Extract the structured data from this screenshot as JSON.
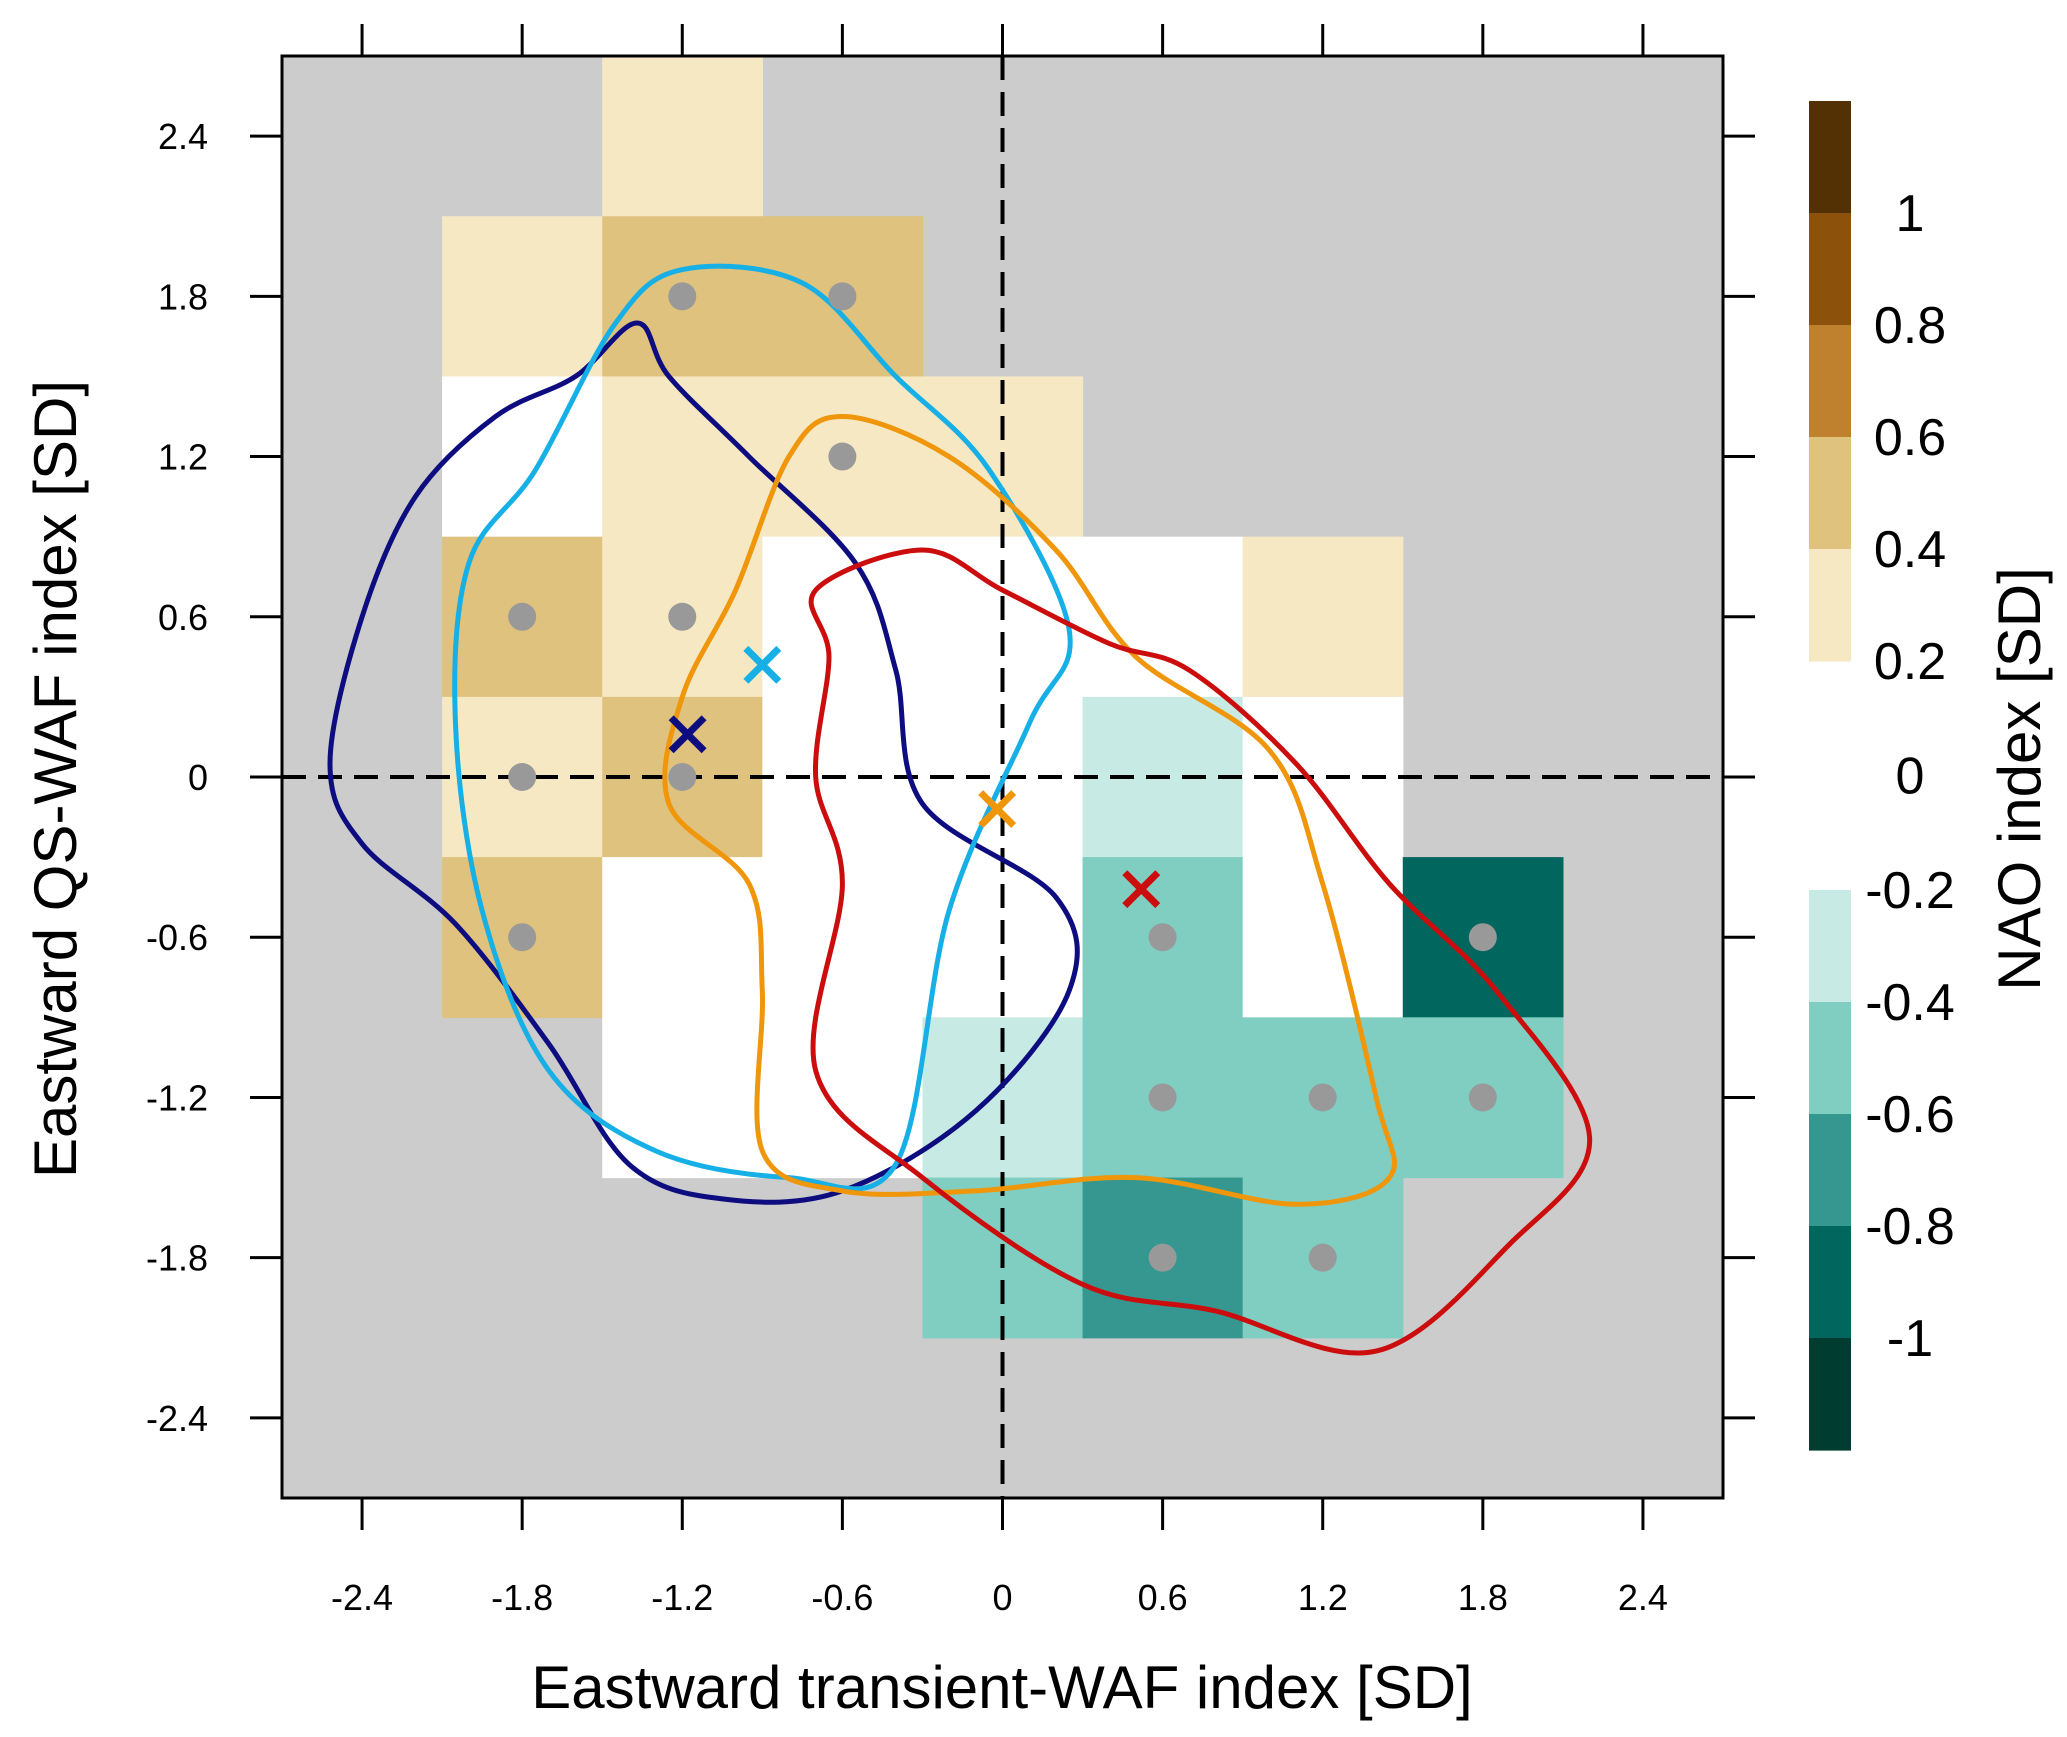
{
  "chart_data": {
    "type": "heatmap",
    "xlabel": "Eastward transient-WAF index [SD]",
    "ylabel": "Eastward QS-WAF index [SD]",
    "xlim": [
      -2.7,
      2.7
    ],
    "ylim": [
      -2.7,
      2.7
    ],
    "xticks": [
      -2.4,
      -1.8,
      -1.2,
      -0.6,
      0,
      0.6,
      1.2,
      1.8,
      2.4
    ],
    "yticks": [
      -2.4,
      -1.8,
      -1.2,
      -0.6,
      0,
      0.6,
      1.2,
      1.8,
      2.4
    ],
    "xtick_labels": [
      "-2.4",
      "-1.8",
      "-1.2",
      "-0.6",
      "0",
      "0.6",
      "1.2",
      "1.8",
      "2.4"
    ],
    "ytick_labels": [
      "-2.4",
      "-1.8",
      "-1.2",
      "-0.6",
      "0",
      "0.6",
      "1.2",
      "1.8",
      "2.4"
    ],
    "cell_size": 0.6,
    "background_color": "#cccccc",
    "colorbar": {
      "label": "NAO index [SD]",
      "levels": [
        1.2,
        1.0,
        0.8,
        0.6,
        0.4,
        0.2,
        0,
        -0.2,
        -0.4,
        -0.6,
        -0.8,
        -1.0,
        -1.2
      ],
      "level_labels": [
        "1",
        "0.8",
        "0.6",
        "0.4",
        "0.2",
        "0",
        "-0.2",
        "-0.4",
        "-0.6",
        "-0.8",
        "-1"
      ],
      "label_values": [
        1.0,
        0.8,
        0.6,
        0.4,
        0.2,
        0,
        -0.2,
        -0.4,
        -0.6,
        -0.8,
        -1.0
      ],
      "colors_positive": [
        "#543005",
        "#8c510a",
        "#bf812d",
        "#dfc27d",
        "#f6e8c3"
      ],
      "colors_negative": [
        "#c7eae5",
        "#80cdc1",
        "#35978f",
        "#01665e",
        "#003c30"
      ],
      "colors": [
        "#543005",
        "#8c510a",
        "#bf812d",
        "#dfc27d",
        "#f6e8c3",
        "#ffffff",
        "#ffffff",
        "#c7eae5",
        "#80cdc1",
        "#35978f",
        "#01665e",
        "#003c30"
      ]
    },
    "cells": [
      {
        "x": -1.2,
        "y": 2.4,
        "nao": 0.3
      },
      {
        "x": -1.8,
        "y": 1.8,
        "nao": 0.3
      },
      {
        "x": -1.2,
        "y": 1.8,
        "nao": 0.5,
        "significant": true
      },
      {
        "x": -0.6,
        "y": 1.8,
        "nao": 0.5,
        "significant": true
      },
      {
        "x": -1.8,
        "y": 1.2,
        "nao": 0.1
      },
      {
        "x": -1.2,
        "y": 1.2,
        "nao": 0.3
      },
      {
        "x": -0.6,
        "y": 1.2,
        "nao": 0.3,
        "significant": true
      },
      {
        "x": 0.0,
        "y": 1.2,
        "nao": 0.3
      },
      {
        "x": -1.8,
        "y": 0.6,
        "nao": 0.5,
        "significant": true
      },
      {
        "x": -1.2,
        "y": 0.6,
        "nao": 0.3,
        "significant": true
      },
      {
        "x": -0.6,
        "y": 0.6,
        "nao": 0.1
      },
      {
        "x": 0.0,
        "y": 0.6,
        "nao": 0.1
      },
      {
        "x": 0.6,
        "y": 0.6,
        "nao": 0.1
      },
      {
        "x": 1.2,
        "y": 0.6,
        "nao": 0.3
      },
      {
        "x": -1.8,
        "y": 0.0,
        "nao": 0.3,
        "significant": true
      },
      {
        "x": -1.2,
        "y": 0.0,
        "nao": 0.5,
        "significant": true
      },
      {
        "x": -0.6,
        "y": 0.0,
        "nao": 0.1
      },
      {
        "x": 0.0,
        "y": 0.0,
        "nao": 0.1
      },
      {
        "x": 0.6,
        "y": 0.0,
        "nao": -0.3
      },
      {
        "x": 1.2,
        "y": 0.0,
        "nao": 0.1
      },
      {
        "x": -1.8,
        "y": -0.6,
        "nao": 0.5,
        "significant": true
      },
      {
        "x": -1.2,
        "y": -0.6,
        "nao": 0.1
      },
      {
        "x": -0.6,
        "y": -0.6,
        "nao": 0.1
      },
      {
        "x": 0.0,
        "y": -0.6,
        "nao": 0.1
      },
      {
        "x": 0.6,
        "y": -0.6,
        "nao": -0.5,
        "significant": true
      },
      {
        "x": 1.2,
        "y": -0.6,
        "nao": 0.1
      },
      {
        "x": 1.8,
        "y": -0.6,
        "nao": -0.9,
        "significant": true
      },
      {
        "x": -1.2,
        "y": -1.2,
        "nao": 0.1
      },
      {
        "x": -0.6,
        "y": -1.2,
        "nao": 0.1
      },
      {
        "x": 0.0,
        "y": -1.2,
        "nao": -0.3
      },
      {
        "x": 0.6,
        "y": -1.2,
        "nao": -0.5,
        "significant": true
      },
      {
        "x": 1.2,
        "y": -1.2,
        "nao": -0.5,
        "significant": true
      },
      {
        "x": 1.8,
        "y": -1.2,
        "nao": -0.5,
        "significant": true
      },
      {
        "x": 0.0,
        "y": -1.8,
        "nao": -0.5
      },
      {
        "x": 0.6,
        "y": -1.8,
        "nao": -0.7,
        "significant": true
      },
      {
        "x": 1.2,
        "y": -1.8,
        "nao": -0.5,
        "significant": true
      }
    ],
    "reference_lines": [
      {
        "orientation": "vertical",
        "value": 0
      },
      {
        "orientation": "horizontal",
        "value": 0
      }
    ],
    "contours": [
      {
        "color": "#0d0d80",
        "centroid": [
          -1.18,
          0.16
        ],
        "points": [
          [
            -1.37,
            1.7
          ],
          [
            -1.6,
            1.5
          ],
          [
            -1.9,
            1.35
          ],
          [
            -2.2,
            1.05
          ],
          [
            -2.4,
            0.6
          ],
          [
            -2.52,
            0.05
          ],
          [
            -2.4,
            -0.25
          ],
          [
            -2.05,
            -0.55
          ],
          [
            -1.7,
            -1.0
          ],
          [
            -1.4,
            -1.45
          ],
          [
            -1.05,
            -1.58
          ],
          [
            -0.6,
            -1.55
          ],
          [
            -0.1,
            -1.25
          ],
          [
            0.25,
            -0.8
          ],
          [
            0.2,
            -0.45
          ],
          [
            -0.3,
            -0.1
          ],
          [
            -0.4,
            0.4
          ],
          [
            -0.55,
            0.8
          ],
          [
            -0.95,
            1.2
          ],
          [
            -1.25,
            1.5
          ],
          [
            -1.37,
            1.7
          ]
        ]
      },
      {
        "color": "#16b0e6",
        "centroid": [
          -0.9,
          0.42
        ],
        "points": [
          [
            -1.2,
            1.9
          ],
          [
            -0.75,
            1.85
          ],
          [
            -0.4,
            1.5
          ],
          [
            -0.05,
            1.15
          ],
          [
            0.25,
            0.55
          ],
          [
            0.1,
            0.2
          ],
          [
            -0.2,
            -0.5
          ],
          [
            -0.4,
            -1.45
          ],
          [
            -0.8,
            -1.5
          ],
          [
            -1.3,
            -1.4
          ],
          [
            -1.7,
            -1.1
          ],
          [
            -1.95,
            -0.5
          ],
          [
            -2.05,
            0.2
          ],
          [
            -2.0,
            0.8
          ],
          [
            -1.75,
            1.15
          ],
          [
            -1.45,
            1.7
          ],
          [
            -1.2,
            1.9
          ]
        ]
      },
      {
        "color": "#f0960a",
        "centroid": [
          -0.02,
          -0.12
        ],
        "points": [
          [
            -0.6,
            1.35
          ],
          [
            -0.2,
            1.2
          ],
          [
            0.2,
            0.85
          ],
          [
            0.5,
            0.45
          ],
          [
            1.0,
            0.1
          ],
          [
            1.2,
            -0.4
          ],
          [
            1.4,
            -1.2
          ],
          [
            1.45,
            -1.5
          ],
          [
            1.1,
            -1.6
          ],
          [
            0.5,
            -1.5
          ],
          [
            -0.1,
            -1.55
          ],
          [
            -0.6,
            -1.55
          ],
          [
            -0.9,
            -1.4
          ],
          [
            -0.9,
            -0.8
          ],
          [
            -0.95,
            -0.4
          ],
          [
            -1.25,
            -0.1
          ],
          [
            -1.2,
            0.3
          ],
          [
            -1.0,
            0.7
          ],
          [
            -0.8,
            1.2
          ],
          [
            -0.6,
            1.35
          ]
        ]
      },
      {
        "color": "#cc0d0d",
        "centroid": [
          0.52,
          -0.42
        ],
        "points": [
          [
            -0.7,
            0.7
          ],
          [
            -0.3,
            0.85
          ],
          [
            0.0,
            0.7
          ],
          [
            0.4,
            0.5
          ],
          [
            0.7,
            0.4
          ],
          [
            1.1,
            0.05
          ],
          [
            1.45,
            -0.4
          ],
          [
            1.85,
            -0.8
          ],
          [
            2.2,
            -1.35
          ],
          [
            1.9,
            -1.75
          ],
          [
            1.4,
            -2.15
          ],
          [
            0.8,
            -2.0
          ],
          [
            0.3,
            -1.9
          ],
          [
            -0.3,
            -1.5
          ],
          [
            -0.7,
            -1.1
          ],
          [
            -0.6,
            -0.4
          ],
          [
            -0.7,
            0.0
          ],
          [
            -0.65,
            0.45
          ],
          [
            -0.7,
            0.7
          ]
        ]
      }
    ],
    "cross_markers": [
      {
        "color": "#0d0d80",
        "x": -1.18,
        "y": 0.16
      },
      {
        "color": "#16b0e6",
        "x": -0.9,
        "y": 0.42
      },
      {
        "color": "#f0960a",
        "x": -0.02,
        "y": -0.12
      },
      {
        "color": "#cc0d0d",
        "x": 0.52,
        "y": -0.42
      }
    ],
    "dot_color": "#999999"
  }
}
